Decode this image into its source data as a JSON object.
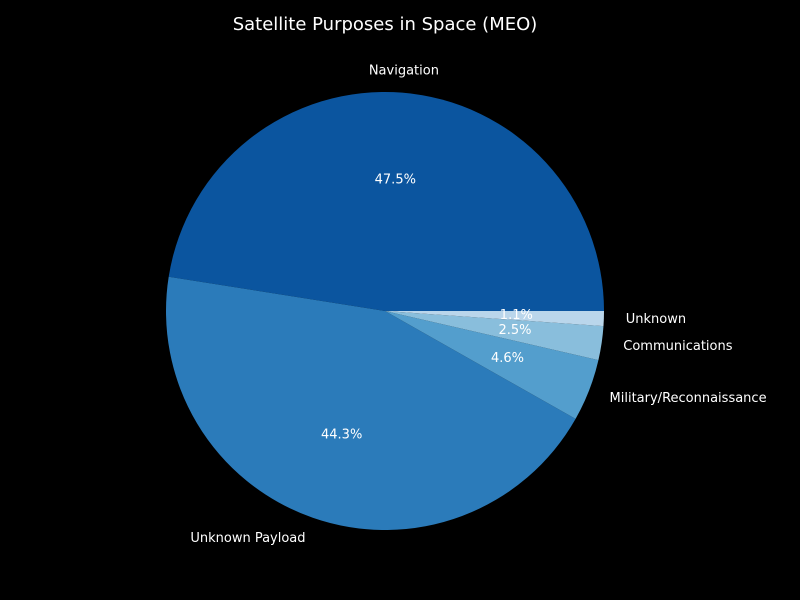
{
  "chart_data": {
    "type": "pie",
    "title": "Satellite Purposes in Space (MEO)",
    "slices": [
      {
        "label": "Navigation",
        "value": 47.5,
        "pct_label": "47.5%",
        "color": "#0b559f"
      },
      {
        "label": "Unknown Payload",
        "value": 44.3,
        "pct_label": "44.3%",
        "color": "#2b7bba"
      },
      {
        "label": "Military/Reconnaissance",
        "value": 4.6,
        "pct_label": "4.6%",
        "color": "#539ecd"
      },
      {
        "label": "Communications",
        "value": 2.5,
        "pct_label": "2.5%",
        "color": "#89bedc"
      },
      {
        "label": "Unknown",
        "value": 1.1,
        "pct_label": "1.1%",
        "color": "#bad6eb"
      }
    ],
    "start_angle_deg": 0,
    "direction": "counterclockwise",
    "legend": "none"
  }
}
